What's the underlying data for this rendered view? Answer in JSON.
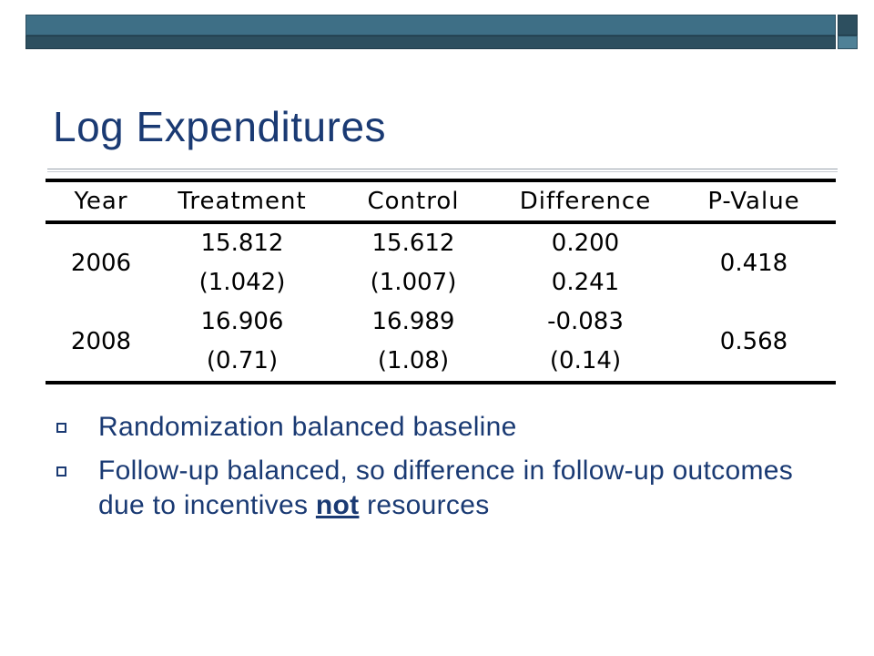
{
  "slide": {
    "title": "Log Expenditures"
  },
  "table": {
    "headers": [
      "Year",
      "Treatment",
      "Control",
      "Difference",
      "P-Value"
    ],
    "rows": [
      {
        "year": "2006",
        "treatment": [
          "15.812",
          "(1.042)"
        ],
        "control": [
          "15.612",
          "(1.007)"
        ],
        "difference": [
          "0.200",
          "0.241"
        ],
        "p_value": "0.418"
      },
      {
        "year": "2008",
        "treatment": [
          "16.906",
          "(0.71)"
        ],
        "control": [
          "16.989",
          "(1.08)"
        ],
        "difference": [
          "-0.083",
          "(0.14)"
        ],
        "p_value": "0.568"
      }
    ]
  },
  "bullets": [
    {
      "text": "Randomization balanced baseline"
    },
    {
      "before": "Follow-up balanced, so difference in follow-up outcomes due to incentives ",
      "emph": "not",
      "after": " resources"
    }
  ],
  "colors": {
    "title": "#1a3a73",
    "bar_light": "#3e6f86",
    "bar_dark": "#2d4f5f"
  }
}
